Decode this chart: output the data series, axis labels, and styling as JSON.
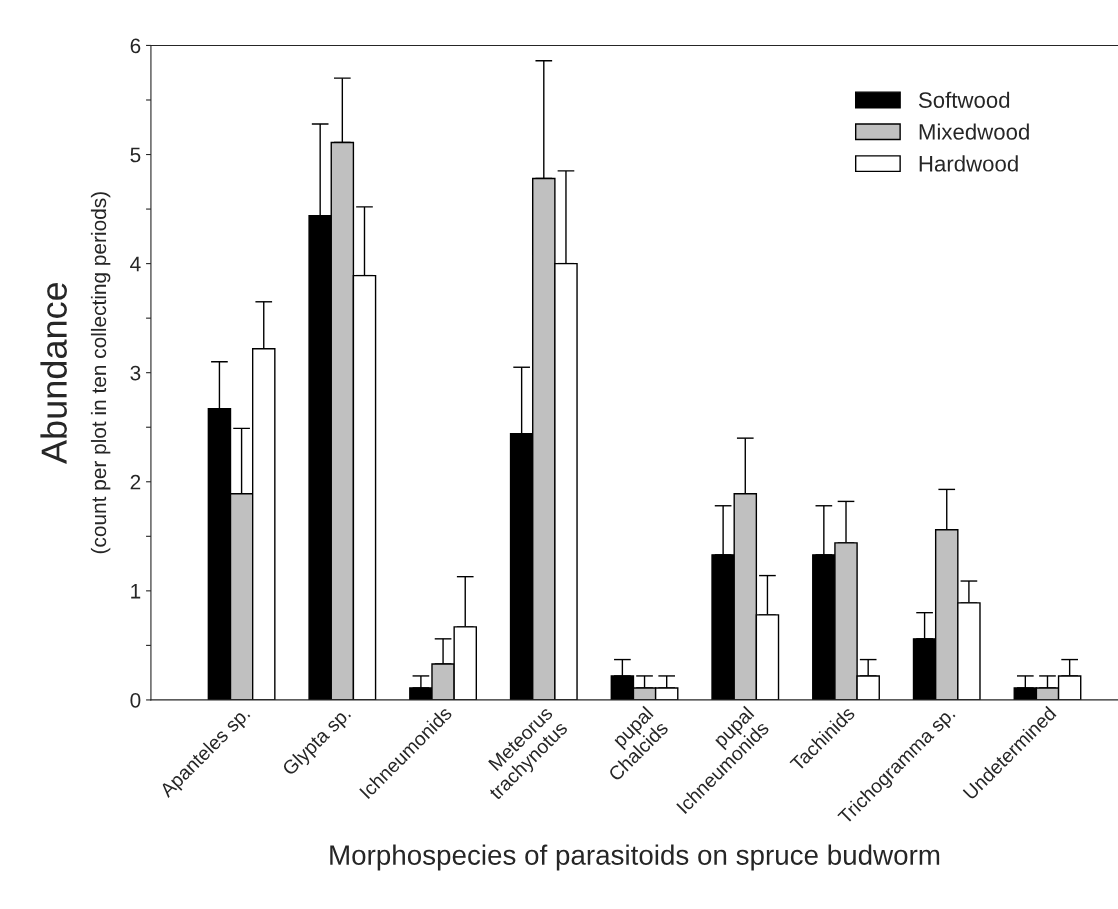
{
  "chart_data": {
    "type": "bar",
    "xlabel": "Morphospecies of parasitoids on spruce budworm",
    "ylabel": "Abundance",
    "annotations": [
      "(count per plot in ten collecting periods)"
    ],
    "categories": [
      "Apanteles sp.",
      "Glypta sp.",
      "Ichneumonids",
      "Meteorus\ntrachynotus",
      "pupal\nChalcids",
      "pupal\nIchneumonids",
      "Tachinids",
      "Trichogramma sp.",
      "Undetermined"
    ],
    "series": [
      {
        "name": "Softwood",
        "color": "#000000",
        "values": [
          2.67,
          4.44,
          0.11,
          2.44,
          0.22,
          1.33,
          1.33,
          0.56,
          0.11
        ],
        "errors": [
          [
            2.67,
            3.1
          ],
          [
            4.44,
            5.28
          ],
          [
            0.11,
            0.22
          ],
          [
            2.44,
            3.05
          ],
          [
            0.22,
            0.37
          ],
          [
            1.33,
            1.78
          ],
          [
            1.33,
            1.78
          ],
          [
            0.56,
            0.8
          ],
          [
            0.11,
            0.22
          ]
        ]
      },
      {
        "name": "Mixedwood",
        "color": "#c0c0c0",
        "values": [
          1.89,
          5.11,
          0.33,
          4.78,
          0.11,
          1.89,
          1.44,
          1.56,
          0.11
        ],
        "errors": [
          [
            1.89,
            2.49
          ],
          [
            5.11,
            5.7
          ],
          [
            0.33,
            0.56
          ],
          [
            4.78,
            5.86
          ],
          [
            0.11,
            0.22
          ],
          [
            1.89,
            2.4
          ],
          [
            1.44,
            1.82
          ],
          [
            1.56,
            1.93
          ],
          [
            0.11,
            0.22
          ]
        ]
      },
      {
        "name": "Hardwood",
        "color": "#ffffff",
        "values": [
          3.22,
          3.89,
          0.67,
          4.0,
          0.11,
          0.78,
          0.22,
          0.89,
          0.22
        ],
        "errors": [
          [
            3.22,
            3.65
          ],
          [
            3.89,
            4.52
          ],
          [
            0.67,
            1.13
          ],
          [
            4.0,
            4.85
          ],
          [
            0.11,
            0.22
          ],
          [
            0.78,
            1.14
          ],
          [
            0.22,
            0.37
          ],
          [
            0.89,
            1.09
          ],
          [
            0.22,
            0.37
          ]
        ]
      }
    ],
    "ylim": [
      0,
      6
    ],
    "yticks": [
      0,
      {
        "value": 0.5,
        "label": null
      },
      1,
      {
        "value": 1.5,
        "label": null
      },
      2,
      {
        "value": 2.5,
        "label": null
      },
      3,
      {
        "value": 3.5,
        "label": null
      },
      4,
      {
        "value": 4.5,
        "label": null
      },
      5,
      {
        "value": 5.5,
        "label": null
      },
      6
    ],
    "legend": "top right",
    "grid": false
  }
}
